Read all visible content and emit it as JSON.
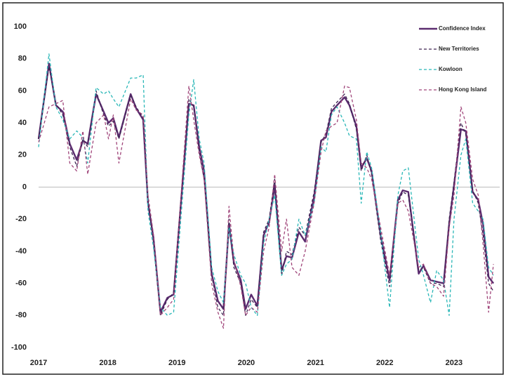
{
  "chart_data": {
    "type": "line",
    "x": [
      2017.0,
      2017.15,
      2017.25,
      2017.35,
      2017.45,
      2017.55,
      2017.64,
      2017.71,
      2017.83,
      2017.94,
      2018.01,
      2018.08,
      2018.16,
      2018.33,
      2018.41,
      2018.51,
      2018.58,
      2018.66,
      2018.76,
      2018.86,
      2018.95,
      2019.17,
      2019.24,
      2019.32,
      2019.39,
      2019.5,
      2019.59,
      2019.67,
      2019.75,
      2019.82,
      2019.92,
      2019.99,
      2020.07,
      2020.16,
      2020.25,
      2020.33,
      2020.41,
      2020.51,
      2020.58,
      2020.66,
      2020.76,
      2020.85,
      2020.98,
      2021.08,
      2021.15,
      2021.23,
      2021.31,
      2021.42,
      2021.49,
      2021.59,
      2021.66,
      2021.74,
      2021.81,
      2021.94,
      2022.07,
      2022.19,
      2022.26,
      2022.34,
      2022.49,
      2022.56,
      2022.66,
      2022.75,
      2022.85,
      2022.93,
      2023.0,
      2023.1,
      2023.17,
      2023.27,
      2023.35,
      2023.42,
      2023.5,
      2023.57
    ],
    "series": [
      {
        "name": "Confidence Index",
        "color": "#5b2c6f",
        "dashed": false,
        "values": [
          30,
          77,
          51,
          47,
          27,
          17,
          29,
          27,
          58,
          47,
          40,
          43,
          31,
          58,
          49,
          42,
          -10,
          -32,
          -78,
          -69,
          -67,
          52,
          51,
          25,
          10,
          -54,
          -71,
          -76,
          -23,
          -47,
          -58,
          -76,
          -67,
          -74,
          -30,
          -22,
          1,
          -52,
          -43,
          -44,
          -28,
          -34,
          -6,
          29,
          31,
          47,
          51,
          56,
          51,
          38,
          12,
          18,
          10,
          -30,
          -58,
          -8,
          -2,
          -3,
          -54,
          -49,
          -58,
          -59,
          -60,
          -23,
          1,
          36,
          35,
          -3,
          -8,
          -23,
          -56,
          -60
        ]
      },
      {
        "name": "New Territories",
        "color": "#3d2352",
        "dashed": true,
        "values": [
          30,
          75,
          52,
          45,
          25,
          13,
          30,
          25,
          60,
          45,
          38,
          41,
          30,
          57,
          50,
          43,
          -8,
          -35,
          -80,
          -70,
          -66,
          55,
          50,
          22,
          5,
          -55,
          -75,
          -80,
          -20,
          -50,
          -60,
          -80,
          -70,
          -75,
          -28,
          -20,
          5,
          -55,
          -40,
          -42,
          -25,
          -30,
          -3,
          28,
          33,
          49,
          53,
          58,
          52,
          36,
          10,
          20,
          8,
          -33,
          -62,
          -10,
          -3,
          -5,
          -52,
          -50,
          -60,
          -60,
          -62,
          -20,
          3,
          40,
          33,
          -2,
          -10,
          -30,
          -60,
          -65
        ]
      },
      {
        "name": "Kowloon",
        "color": "#2ab7b7",
        "dashed": true,
        "values": [
          25,
          83,
          50,
          42,
          30,
          35,
          31,
          15,
          62,
          58,
          60,
          55,
          50,
          68,
          68,
          70,
          -15,
          -38,
          -75,
          -80,
          -78,
          45,
          67,
          30,
          15,
          -50,
          -65,
          -72,
          -25,
          -42,
          -55,
          -60,
          -75,
          -80,
          -35,
          -20,
          -5,
          -55,
          -48,
          -45,
          -20,
          -30,
          -10,
          25,
          22,
          45,
          50,
          40,
          32,
          30,
          -10,
          22,
          12,
          -28,
          -75,
          -5,
          10,
          12,
          -45,
          -55,
          -72,
          -52,
          -58,
          -80,
          -20,
          20,
          30,
          -10,
          -15,
          -20,
          -50,
          -55
        ]
      },
      {
        "name": "Hong Kong Island",
        "color": "#a0457a",
        "dashed": true,
        "values": [
          28,
          50,
          52,
          54,
          15,
          10,
          35,
          8,
          40,
          45,
          30,
          45,
          15,
          55,
          48,
          45,
          -5,
          -30,
          -80,
          -75,
          -70,
          63,
          42,
          20,
          5,
          -60,
          -78,
          -88,
          -12,
          -45,
          -62,
          -80,
          -75,
          -78,
          -40,
          -25,
          8,
          -40,
          -20,
          -50,
          -55,
          -40,
          -10,
          22,
          35,
          38,
          40,
          63,
          62,
          42,
          15,
          12,
          5,
          -25,
          -55,
          -10,
          -8,
          -15,
          -50,
          -48,
          -60,
          -62,
          -68,
          -25,
          -5,
          50,
          40,
          5,
          -5,
          -35,
          -78,
          -48
        ]
      }
    ],
    "xlim": [
      2017,
      2023.66
    ],
    "xticks": [
      2017,
      2018,
      2019,
      2020,
      2021,
      2022,
      2023
    ],
    "ylim": [
      -100,
      100
    ],
    "yticks": [
      -100,
      -80,
      -60,
      -40,
      -20,
      0,
      20,
      40,
      60,
      80,
      100
    ],
    "zero_line": true,
    "legend": "upper right"
  }
}
